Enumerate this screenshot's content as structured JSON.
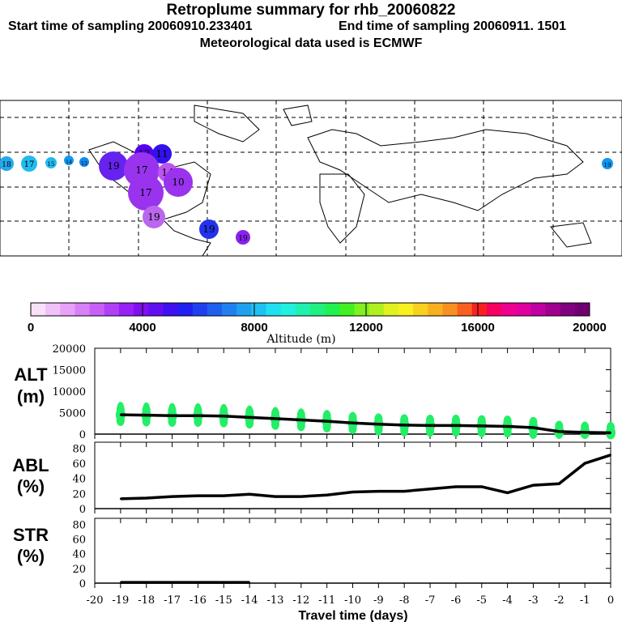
{
  "title": "Retroplume summary for rhb_20060822",
  "subtitle_start": "Start time of sampling 20060910.233401",
  "subtitle_end": "End time of sampling 20060911.  1501",
  "subtitle_met": "Meteorological data used is ECMWF",
  "colorbar": {
    "label": "Altitude (m)",
    "ticks": [
      "0",
      "4000",
      "8000",
      "12000",
      "16000",
      "20000"
    ],
    "min": 0,
    "max": 20000
  },
  "map_labels": [
    "18",
    "17",
    "15",
    "14",
    "13",
    "19",
    "12",
    "11",
    "17",
    "14",
    "10",
    "19"
  ],
  "chart_data": [
    {
      "type": "line",
      "name": "ALT",
      "ylabel": "ALT",
      "yunit": "(m)",
      "ylim": [
        0,
        20000
      ],
      "yticks": [
        "20000",
        "15000",
        "10000",
        "5000",
        "0"
      ],
      "x": [
        -19,
        -18,
        -17,
        -16,
        -15,
        -14,
        -13,
        -12,
        -11,
        -10,
        -9,
        -8,
        -7,
        -6,
        -5,
        -4,
        -3,
        -2,
        -1,
        0
      ],
      "values": [
        4500,
        4400,
        4300,
        4300,
        4200,
        3900,
        3600,
        3300,
        3000,
        2600,
        2300,
        2100,
        2000,
        2000,
        1900,
        1800,
        1500,
        600,
        400,
        300
      ]
    },
    {
      "type": "line",
      "name": "ABL",
      "ylabel": "ABL",
      "yunit": "(%)",
      "ylim": [
        0,
        88
      ],
      "yticks": [
        "80",
        "60",
        "40",
        "20",
        "0"
      ],
      "x": [
        -19,
        -18,
        -17,
        -16,
        -15,
        -14,
        -13,
        -12,
        -11,
        -10,
        -9,
        -8,
        -7,
        -6,
        -5,
        -4,
        -3,
        -2,
        -1,
        0
      ],
      "values": [
        13,
        14,
        16,
        17,
        17,
        19,
        16,
        16,
        18,
        22,
        23,
        23,
        26,
        29,
        29,
        21,
        31,
        33,
        60,
        71
      ]
    },
    {
      "type": "line",
      "name": "STR",
      "ylabel": "STR",
      "yunit": "(%)",
      "ylim": [
        0,
        88
      ],
      "yticks": [
        "80",
        "60",
        "40",
        "20",
        "0"
      ],
      "x": [
        -19,
        -18,
        -17,
        -16,
        -15,
        -14
      ],
      "values": [
        1,
        1,
        1,
        1,
        1,
        1
      ]
    }
  ],
  "xaxis": {
    "label": "Travel time (days)",
    "ticks": [
      "-20",
      "-19",
      "-18",
      "-17",
      "-16",
      "-15",
      "-14",
      "-13",
      "-12",
      "-11",
      "-10",
      "-9",
      "-8",
      "-7",
      "-6",
      "-5",
      "-4",
      "-3",
      "-2",
      "-1",
      "0"
    ],
    "xlim": [
      -20,
      0
    ]
  }
}
